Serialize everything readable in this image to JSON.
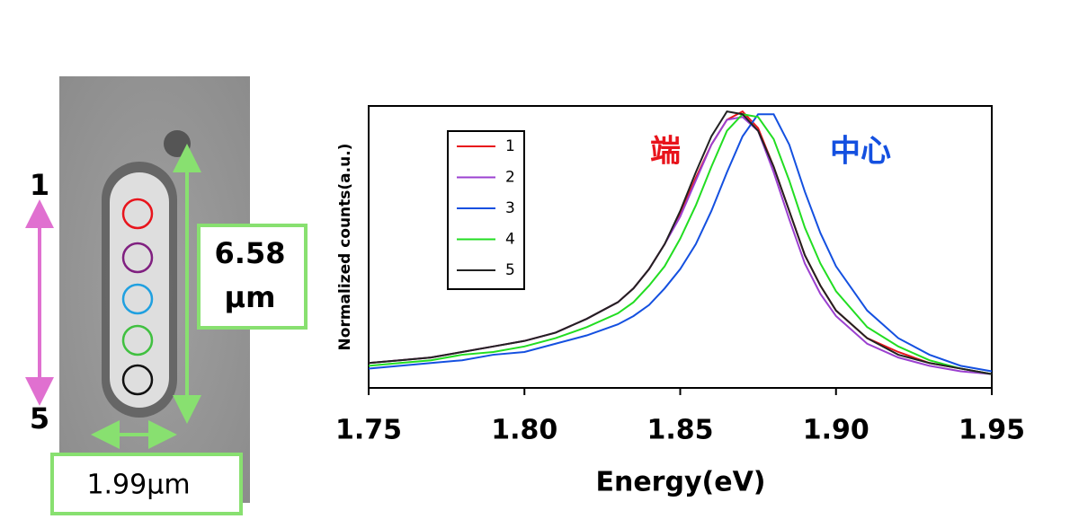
{
  "image_labels": {
    "top_marker": "1",
    "bottom_marker": "5",
    "length_value": "6.58",
    "length_unit": "μm",
    "width_label": "1.99μm"
  },
  "chart_data": {
    "type": "line",
    "xlabel": "Energy(eV)",
    "ylabel": "Normalized counts(a.u.)",
    "annotations": [
      {
        "text": "端",
        "color": "#e8141c"
      },
      {
        "text": "中心",
        "color": "#1450e0"
      }
    ],
    "x": [
      1.75,
      1.76,
      1.77,
      1.78,
      1.79,
      1.8,
      1.81,
      1.82,
      1.83,
      1.835,
      1.84,
      1.845,
      1.85,
      1.855,
      1.86,
      1.865,
      1.87,
      1.875,
      1.88,
      1.885,
      1.89,
      1.895,
      1.9,
      1.91,
      1.92,
      1.93,
      1.94,
      1.95
    ],
    "series": [
      {
        "name": "1",
        "color": "#e8141c",
        "values": [
          0.09,
          0.1,
          0.11,
          0.13,
          0.15,
          0.17,
          0.2,
          0.25,
          0.31,
          0.36,
          0.43,
          0.52,
          0.63,
          0.76,
          0.88,
          0.97,
          1.0,
          0.94,
          0.8,
          0.64,
          0.48,
          0.37,
          0.28,
          0.18,
          0.13,
          0.09,
          0.07,
          0.05
        ]
      },
      {
        "name": "2",
        "color": "#9b40d0",
        "values": [
          0.09,
          0.1,
          0.11,
          0.13,
          0.15,
          0.17,
          0.2,
          0.25,
          0.31,
          0.36,
          0.43,
          0.52,
          0.62,
          0.75,
          0.88,
          0.97,
          0.98,
          0.93,
          0.78,
          0.61,
          0.45,
          0.34,
          0.26,
          0.16,
          0.11,
          0.08,
          0.06,
          0.05
        ]
      },
      {
        "name": "3",
        "color": "#1450e0",
        "values": [
          0.07,
          0.08,
          0.09,
          0.1,
          0.12,
          0.13,
          0.16,
          0.19,
          0.23,
          0.26,
          0.3,
          0.36,
          0.43,
          0.52,
          0.64,
          0.78,
          0.91,
          0.99,
          0.99,
          0.88,
          0.71,
          0.56,
          0.44,
          0.28,
          0.18,
          0.12,
          0.08,
          0.06
        ]
      },
      {
        "name": "4",
        "color": "#22dd22",
        "values": [
          0.08,
          0.09,
          0.1,
          0.12,
          0.13,
          0.15,
          0.18,
          0.22,
          0.27,
          0.31,
          0.37,
          0.44,
          0.54,
          0.66,
          0.8,
          0.93,
          0.99,
          0.98,
          0.9,
          0.75,
          0.58,
          0.45,
          0.35,
          0.22,
          0.15,
          0.1,
          0.07,
          0.05
        ]
      },
      {
        "name": "5",
        "color": "#222222",
        "values": [
          0.09,
          0.1,
          0.11,
          0.13,
          0.15,
          0.17,
          0.2,
          0.25,
          0.31,
          0.36,
          0.43,
          0.52,
          0.64,
          0.78,
          0.91,
          1.0,
          0.99,
          0.93,
          0.8,
          0.64,
          0.48,
          0.37,
          0.28,
          0.18,
          0.12,
          0.09,
          0.07,
          0.05
        ]
      }
    ],
    "xlim": [
      1.75,
      1.95
    ],
    "xticks": [
      1.75,
      {
        "value": 1.8,
        "label": "1.80"
      },
      {
        "value": 1.85,
        "label": "1.85"
      },
      {
        "value": 1.9,
        "label": "1.90"
      },
      1.95
    ],
    "ylim": [
      0,
      1.02
    ],
    "legend": "upper left"
  }
}
